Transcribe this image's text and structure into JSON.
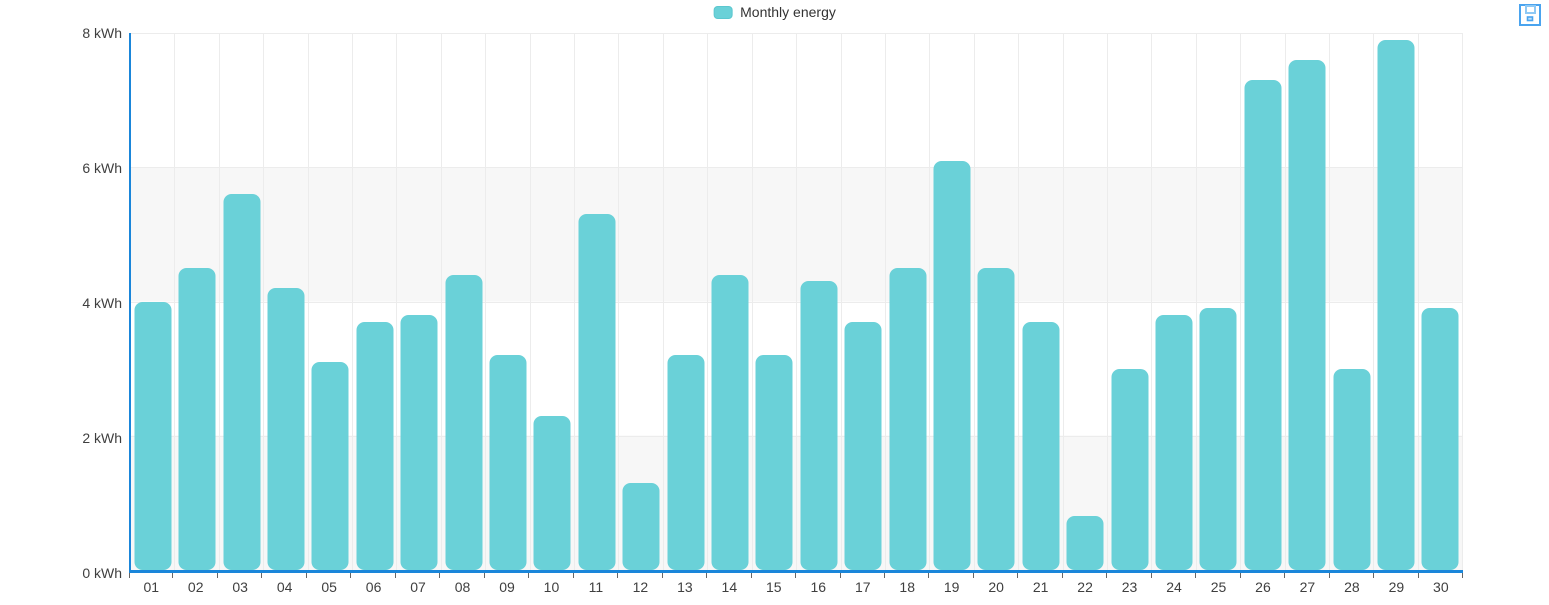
{
  "chart_data": {
    "type": "bar",
    "title": "",
    "categories": [
      "01",
      "02",
      "03",
      "04",
      "05",
      "06",
      "07",
      "08",
      "09",
      "10",
      "11",
      "12",
      "13",
      "14",
      "15",
      "16",
      "17",
      "18",
      "19",
      "20",
      "21",
      "22",
      "23",
      "24",
      "25",
      "26",
      "27",
      "28",
      "29",
      "30"
    ],
    "series": [
      {
        "name": "Monthly energy",
        "values": [
          4.0,
          4.5,
          5.6,
          4.2,
          3.1,
          3.7,
          3.8,
          4.4,
          3.2,
          2.3,
          5.3,
          1.3,
          3.2,
          4.4,
          3.2,
          4.3,
          3.7,
          4.5,
          6.1,
          4.5,
          3.7,
          0.8,
          3.0,
          3.8,
          3.9,
          7.3,
          7.6,
          3.0,
          7.9,
          3.9
        ]
      }
    ],
    "unit": "kWh",
    "ylim": [
      0,
      8
    ],
    "yticks": [
      {
        "value": 0,
        "label": "0 kWh"
      },
      {
        "value": 2,
        "label": "2 kWh"
      },
      {
        "value": 4,
        "label": "4 kWh"
      },
      {
        "value": 6,
        "label": "6 kWh"
      },
      {
        "value": 8,
        "label": "8 kWh"
      }
    ],
    "xlabel": "",
    "ylabel": "",
    "grid": true,
    "legend_position": "top-center",
    "background_bands": "alternating horizontal stripes every 2 kWh"
  },
  "icons": {
    "save": "floppy-disk-icon"
  },
  "colors": {
    "bar_fill": "#6ad1d8",
    "swatch_border": "#5cc7cf",
    "axis_line": "#1a86da",
    "band_fill": "#f7f7f7",
    "gridline": "#ececec",
    "tick": "#666666",
    "label_text": "#3f3f3f",
    "legend_text": "#333333",
    "save_icon_outline": "#4aa4ef",
    "save_icon_notch": "#8ec9f5"
  }
}
